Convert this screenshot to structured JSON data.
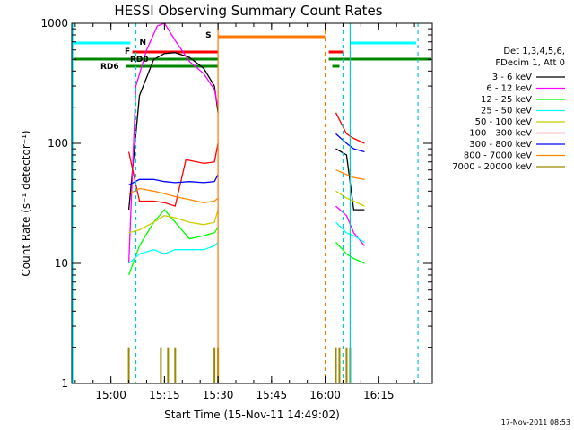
{
  "chart_data": {
    "type": "line",
    "title": "HESSI Observing Summary Count Rates",
    "xlabel": "Start Time (15-Nov-11 14:49:02)",
    "ylabel": "Count Rate (s⁻¹ detector⁻¹)",
    "yscale": "log",
    "xlim": [
      "14:49:02",
      "16:30:00"
    ],
    "ylim": [
      1,
      1000
    ],
    "xticks": [
      "15:00",
      "15:15",
      "15:30",
      "15:45",
      "16:00",
      "16:15"
    ],
    "yticks": [
      "1",
      "10",
      "100",
      "1000"
    ],
    "grid": false,
    "legend_placement": "right",
    "legend_header": [
      "Det 1,3,4,5,6,",
      "FDecim 1, Att 0"
    ],
    "series": [
      {
        "name": "3 - 6 keV",
        "color": "#000000",
        "x": [
          "15:05",
          "15:08",
          "15:12",
          "15:15",
          "15:18",
          "15:22",
          "15:26",
          "15:29",
          "15:30",
          "16:03",
          "16:06",
          "16:08",
          "16:11"
        ],
        "y": [
          28,
          250,
          500,
          560,
          570,
          520,
          420,
          300,
          180,
          90,
          80,
          28,
          28
        ]
      },
      {
        "name": "6 - 12 keV",
        "color": "#ff00ff",
        "x": [
          "15:05",
          "15:07",
          "15:10",
          "15:13",
          "15:15",
          "15:18",
          "15:22",
          "15:26",
          "15:29",
          "15:30",
          "16:03",
          "16:06",
          "16:08",
          "16:11"
        ],
        "y": [
          10,
          300,
          600,
          950,
          1000,
          720,
          480,
          380,
          280,
          200,
          30,
          25,
          18,
          14
        ]
      },
      {
        "name": "12 - 25 keV",
        "color": "#00ff00",
        "x": [
          "15:05",
          "15:08",
          "15:12",
          "15:15",
          "15:18",
          "15:22",
          "15:26",
          "15:29",
          "15:30",
          "16:03",
          "16:06",
          "16:08",
          "16:11"
        ],
        "y": [
          8,
          14,
          22,
          28,
          22,
          16,
          17,
          18,
          20,
          15,
          12,
          11,
          10
        ]
      },
      {
        "name": "25 - 50 keV",
        "color": "#00ffff",
        "x": [
          "15:05",
          "15:08",
          "15:12",
          "15:15",
          "15:18",
          "15:22",
          "15:26",
          "15:29",
          "15:30",
          "16:03",
          "16:06",
          "16:08",
          "16:11"
        ],
        "y": [
          10,
          12,
          13,
          12,
          13,
          13,
          13,
          14,
          15,
          22,
          18,
          17,
          15
        ]
      },
      {
        "name": "50 - 100 keV",
        "color": "#cccc00",
        "x": [
          "15:05",
          "15:08",
          "15:12",
          "15:15",
          "15:18",
          "15:22",
          "15:26",
          "15:29",
          "15:30",
          "16:03",
          "16:06",
          "16:08",
          "16:11"
        ],
        "y": [
          18,
          19,
          22,
          25,
          24,
          22,
          21,
          22,
          28,
          40,
          35,
          33,
          30
        ]
      },
      {
        "name": "100 - 300 keV",
        "color": "#ff0000",
        "x": [
          "15:05",
          "15:08",
          "15:12",
          "15:15",
          "15:18",
          "15:21",
          "15:26",
          "15:29",
          "15:30",
          "16:03",
          "16:06",
          "16:08",
          "16:11"
        ],
        "y": [
          85,
          33,
          33,
          32,
          30,
          73,
          68,
          70,
          100,
          180,
          120,
          110,
          100
        ]
      },
      {
        "name": "300 - 800 keV",
        "color": "#0000ff",
        "x": [
          "15:05",
          "15:08",
          "15:12",
          "15:15",
          "15:18",
          "15:22",
          "15:26",
          "15:29",
          "15:30",
          "16:03",
          "16:06",
          "16:08",
          "16:11"
        ],
        "y": [
          45,
          50,
          50,
          48,
          47,
          48,
          47,
          48,
          55,
          120,
          100,
          90,
          85
        ]
      },
      {
        "name": "800 - 7000 keV",
        "color": "#ff8800",
        "x": [
          "15:05",
          "15:08",
          "15:12",
          "15:15",
          "15:18",
          "15:22",
          "15:26",
          "15:29",
          "15:30",
          "16:03",
          "16:06",
          "16:08",
          "16:11"
        ],
        "y": [
          38,
          42,
          40,
          38,
          36,
          34,
          32,
          33,
          35,
          60,
          55,
          52,
          50
        ]
      },
      {
        "name": "7000 - 20000 keV",
        "color": "#998800",
        "x": [
          "15:05",
          "15:06",
          "15:14",
          "15:16",
          "15:18",
          "15:22",
          "15:29",
          "15:30",
          "16:03",
          "16:04",
          "16:06",
          "16:07"
        ],
        "y": [
          2,
          1,
          2,
          2,
          2,
          1,
          2,
          2,
          2,
          2,
          2,
          2
        ]
      }
    ],
    "annotations": {
      "night_markers": [
        "15:07",
        "16:05",
        "16:07",
        "16:26"
      ],
      "saa_start": "15:30",
      "saa_end": "16:00",
      "saa_label": "S",
      "night_label": "N",
      "flare_label": "F",
      "rd_labels": [
        "RD0",
        "RD6"
      ]
    },
    "timestamp": "17-Nov-2011 08:53"
  }
}
